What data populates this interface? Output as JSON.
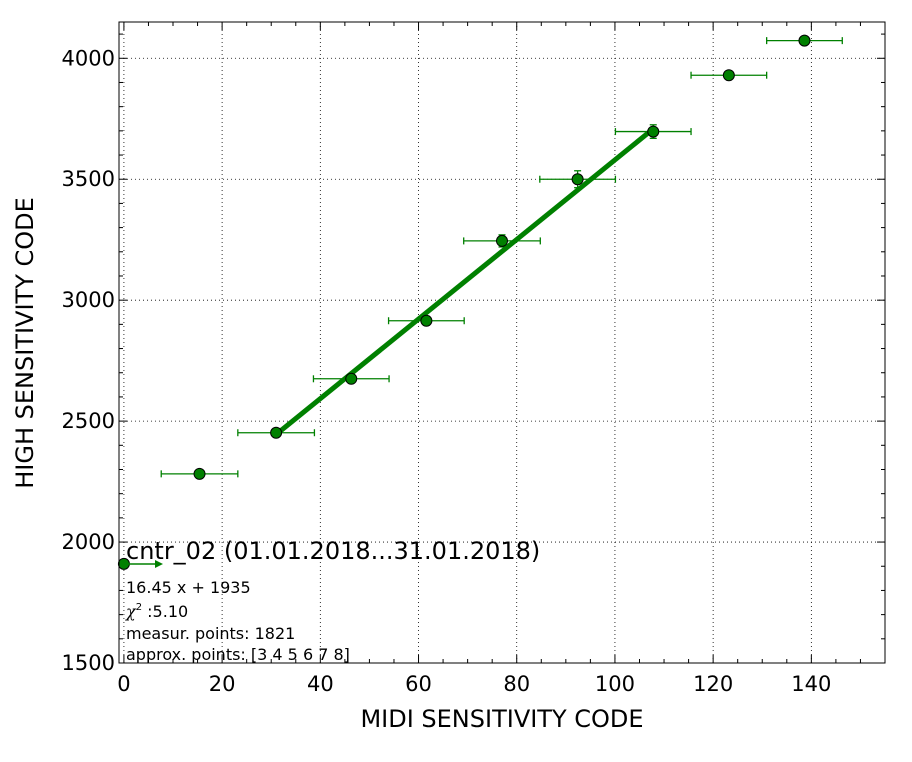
{
  "chart_data": {
    "type": "scatter",
    "xlabel": "MIDI SENSITIVITY CODE",
    "ylabel": "HIGH SENSITIVITY CODE",
    "xlim": [
      -1,
      155
    ],
    "ylim": [
      1500,
      4150
    ],
    "x_ticks": [
      0,
      20,
      40,
      60,
      80,
      100,
      120,
      140
    ],
    "y_ticks": [
      1500,
      2000,
      2500,
      3000,
      3500,
      4000
    ],
    "grid": true,
    "grid_style": "dotted",
    "color": "#008000",
    "points": [
      {
        "x": 0,
        "y": 1910,
        "xerr": 0,
        "yerr": 0
      },
      {
        "x": 15.4,
        "y": 2282,
        "xerr": 7.8,
        "yerr": 8
      },
      {
        "x": 31.0,
        "y": 2452,
        "xerr": 7.8,
        "yerr": 8
      },
      {
        "x": 46.3,
        "y": 2675,
        "xerr": 7.7,
        "yerr": 15
      },
      {
        "x": 61.6,
        "y": 2915,
        "xerr": 7.7,
        "yerr": 18
      },
      {
        "x": 77.0,
        "y": 3245,
        "xerr": 7.8,
        "yerr": 25
      },
      {
        "x": 92.4,
        "y": 3500,
        "xerr": 7.7,
        "yerr": 35
      },
      {
        "x": 107.8,
        "y": 3697,
        "xerr": 7.7,
        "yerr": 28
      },
      {
        "x": 123.2,
        "y": 3930,
        "xerr": 7.7,
        "yerr": 12
      },
      {
        "x": 138.6,
        "y": 4073,
        "xerr": 7.7,
        "yerr": 10
      }
    ],
    "fit_line": {
      "x0": 31.0,
      "x1": 107.8,
      "slope": 16.45,
      "intercept": 1935
    },
    "annotation": {
      "title": "cntr_02 (01.01.2018...31.01.2018)",
      "equation": "16.45 x + 1935",
      "chi_symbol": "χ",
      "chi_sup": "2",
      "chi_value": " :5.10",
      "measur_points": "measur. points: 1821",
      "approx_points": "approx. points: [3 4 5 6 7 8]"
    }
  }
}
